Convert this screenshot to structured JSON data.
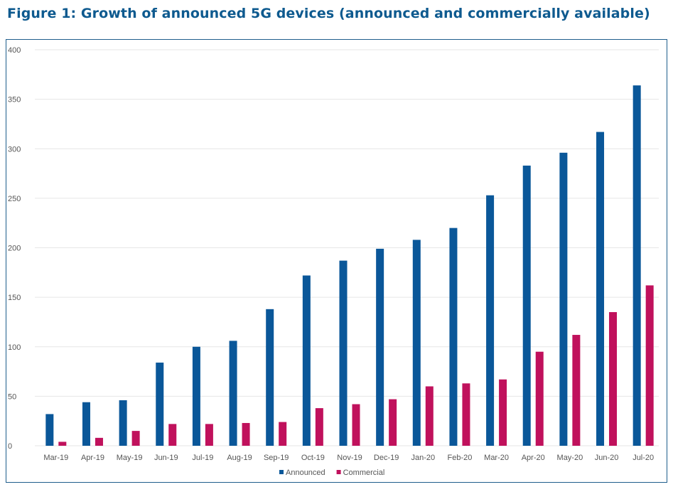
{
  "figure": {
    "title": "Figure 1: Growth of announced 5G devices (announced and commercially available)"
  },
  "colors": {
    "announced": "#0a5799",
    "commercial": "#c0115c",
    "grid": "#e6e6e6",
    "axis_text": "#555555"
  },
  "chart_data": {
    "type": "bar",
    "title": "Figure 1: Growth of announced 5G devices (announced and commercially available)",
    "xlabel": "",
    "ylabel": "",
    "ylim": [
      0,
      400
    ],
    "yticks": [
      0,
      50,
      100,
      150,
      200,
      250,
      300,
      350,
      400
    ],
    "grid": true,
    "legend": "bottom-center",
    "categories": [
      "Mar-19",
      "Apr-19",
      "May-19",
      "Jun-19",
      "Jul-19",
      "Aug-19",
      "Sep-19",
      "Oct-19",
      "Nov-19",
      "Dec-19",
      "Jan-20",
      "Feb-20",
      "Mar-20",
      "Apr-20",
      "May-20",
      "Jun-20",
      "Jul-20"
    ],
    "series": [
      {
        "name": "Announced",
        "color": "#0a5799",
        "values": [
          32,
          44,
          46,
          84,
          100,
          106,
          138,
          172,
          187,
          199,
          208,
          220,
          253,
          283,
          296,
          317,
          364
        ]
      },
      {
        "name": "Commercial",
        "color": "#c0115c",
        "values": [
          4,
          8,
          15,
          22,
          22,
          23,
          24,
          38,
          42,
          47,
          60,
          63,
          67,
          95,
          112,
          135,
          162
        ]
      }
    ]
  }
}
